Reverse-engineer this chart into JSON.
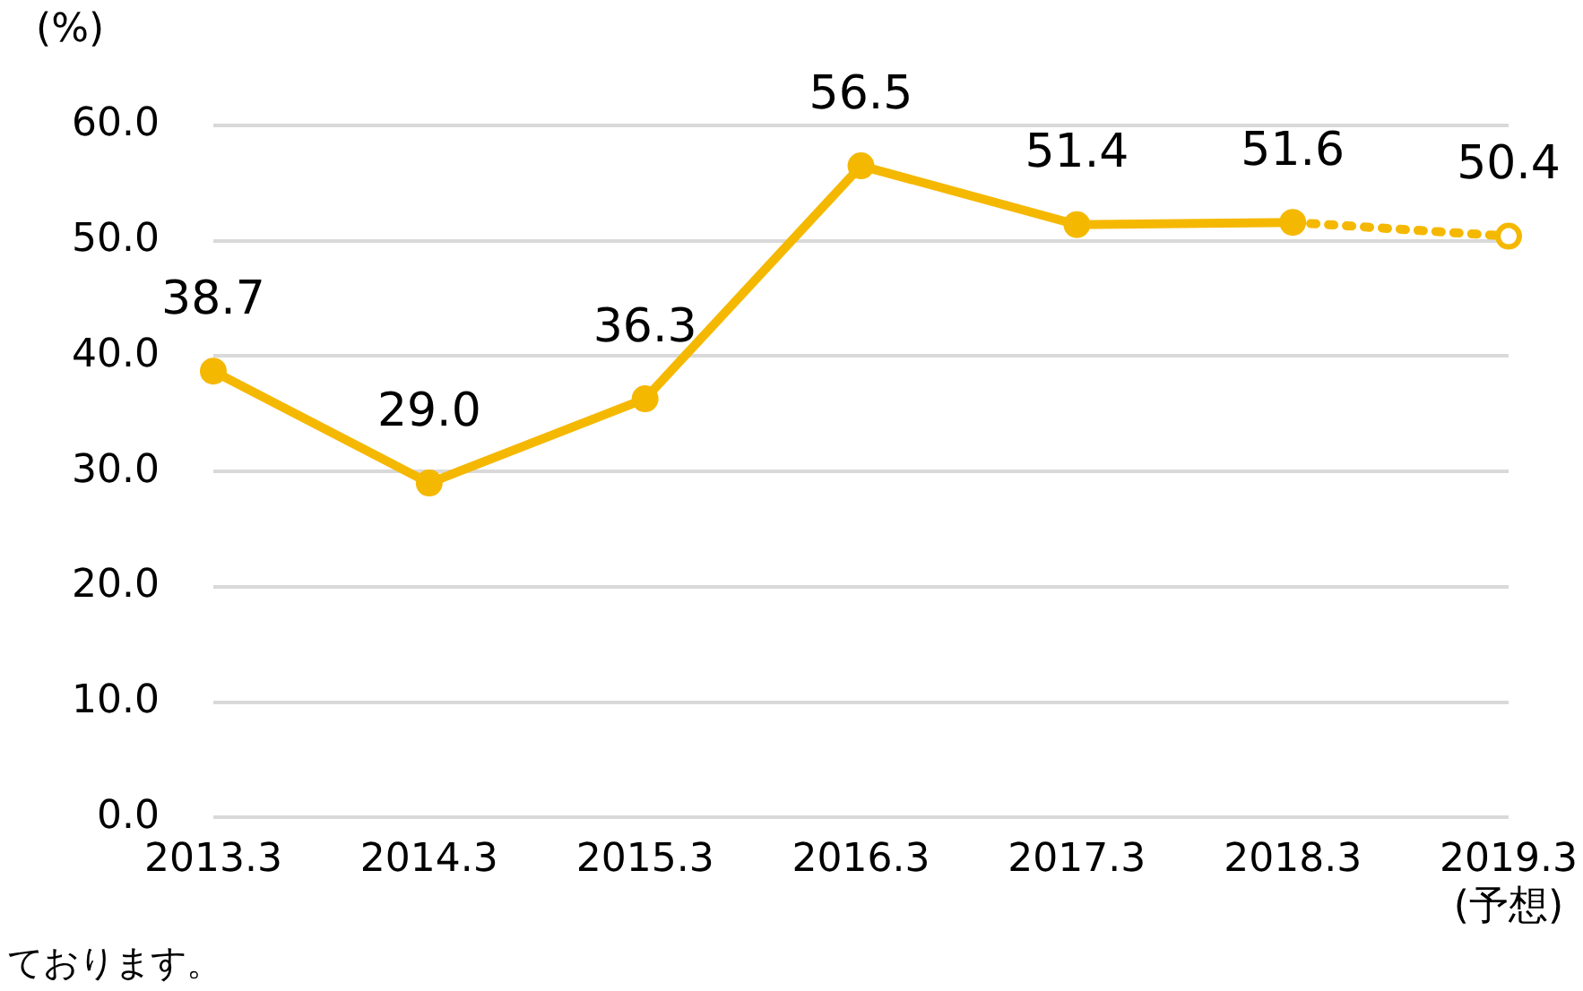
{
  "chart_data": {
    "type": "line",
    "ylabel": "(%)",
    "annotations": [
      "ております。"
    ],
    "categories": [
      "2013.3",
      "2014.3",
      "2015.3",
      "2016.3",
      "2017.3",
      "2018.3",
      "2019.3\n(予想)"
    ],
    "series": [
      {
        "color": "#f5b800",
        "values": [
          38.7,
          29.0,
          36.3,
          56.5,
          51.4,
          51.6,
          null
        ],
        "line_style": "solid",
        "marker": "circle",
        "value_labels": [
          "38.7",
          "29.0",
          "36.3",
          "56.5",
          "51.4",
          "51.6",
          null
        ]
      },
      {
        "color": "#f5b800",
        "values": [
          null,
          null,
          null,
          null,
          null,
          51.6,
          50.4
        ],
        "line_style": "dotted",
        "marker": "circle",
        "value_labels": [
          null,
          null,
          null,
          null,
          null,
          null,
          "50.4"
        ]
      }
    ],
    "ylim": [
      0,
      60
    ],
    "yticks": [
      {
        "value": 0,
        "label": "0.0"
      },
      {
        "value": 10,
        "label": "10.0"
      },
      {
        "value": 20,
        "label": "20.0"
      },
      {
        "value": 30,
        "label": "30.0"
      },
      {
        "value": 40,
        "label": "40.0"
      },
      {
        "value": 50,
        "label": "50.0"
      },
      {
        "value": 60,
        "label": "60.0"
      }
    ],
    "grid": "y",
    "legend": false
  }
}
